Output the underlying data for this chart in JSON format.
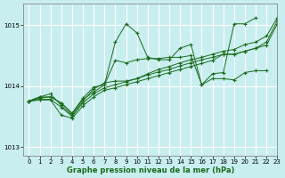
{
  "title": "Graphe pression niveau de la mer (hPa)",
  "bg_color": "#c8eef0",
  "grid_color": "#ffffff",
  "line_color": "#1a6b1a",
  "xlim": [
    -0.5,
    23
  ],
  "ylim": [
    1012.85,
    1015.35
  ],
  "yticks": [
    1013,
    1014,
    1015
  ],
  "xticks": [
    0,
    1,
    2,
    3,
    4,
    5,
    6,
    7,
    8,
    9,
    10,
    11,
    12,
    13,
    14,
    15,
    16,
    17,
    18,
    19,
    20,
    21,
    22,
    23
  ],
  "series": [
    [
      1013.75,
      1013.8,
      1013.82,
      1013.72,
      1013.55,
      1013.78,
      1013.9,
      1014.02,
      1014.72,
      1015.02,
      1014.87,
      1014.47,
      1014.43,
      1014.43,
      1014.62,
      1014.68,
      1014.02,
      1014.2,
      1014.22,
      1015.02,
      1015.02,
      1015.12,
      null,
      null
    ],
    [
      1013.75,
      1013.82,
      1013.82,
      1013.72,
      1013.55,
      1013.8,
      1013.98,
      1014.02,
      1014.42,
      1014.38,
      1014.43,
      1014.45,
      1014.45,
      1014.47,
      1014.47,
      1014.5,
      1014.02,
      1014.12,
      1014.12,
      1014.1,
      1014.22,
      1014.25,
      1014.25,
      null
    ],
    [
      1013.75,
      1013.82,
      1013.87,
      1013.68,
      1013.52,
      1013.75,
      1013.95,
      1014.05,
      1014.08,
      1014.08,
      1014.12,
      1014.2,
      1014.27,
      1014.32,
      1014.38,
      1014.43,
      1014.47,
      1014.52,
      1014.57,
      1014.6,
      1014.68,
      1014.72,
      1014.82,
      1015.12
    ],
    [
      1013.75,
      1013.78,
      1013.78,
      1013.65,
      1013.5,
      1013.72,
      1013.87,
      1013.97,
      1014.02,
      1014.07,
      1014.12,
      1014.18,
      1014.23,
      1014.27,
      1014.33,
      1014.38,
      1014.43,
      1014.47,
      1014.52,
      1014.52,
      1014.57,
      1014.62,
      1014.72,
      1015.07
    ],
    [
      1013.75,
      1013.77,
      1013.77,
      1013.52,
      1013.47,
      1013.67,
      1013.82,
      1013.93,
      1013.97,
      1014.02,
      1014.07,
      1014.12,
      1014.17,
      1014.22,
      1014.27,
      1014.32,
      1014.37,
      1014.42,
      1014.52,
      1014.52,
      1014.57,
      1014.62,
      1014.67,
      1015.02
    ]
  ]
}
